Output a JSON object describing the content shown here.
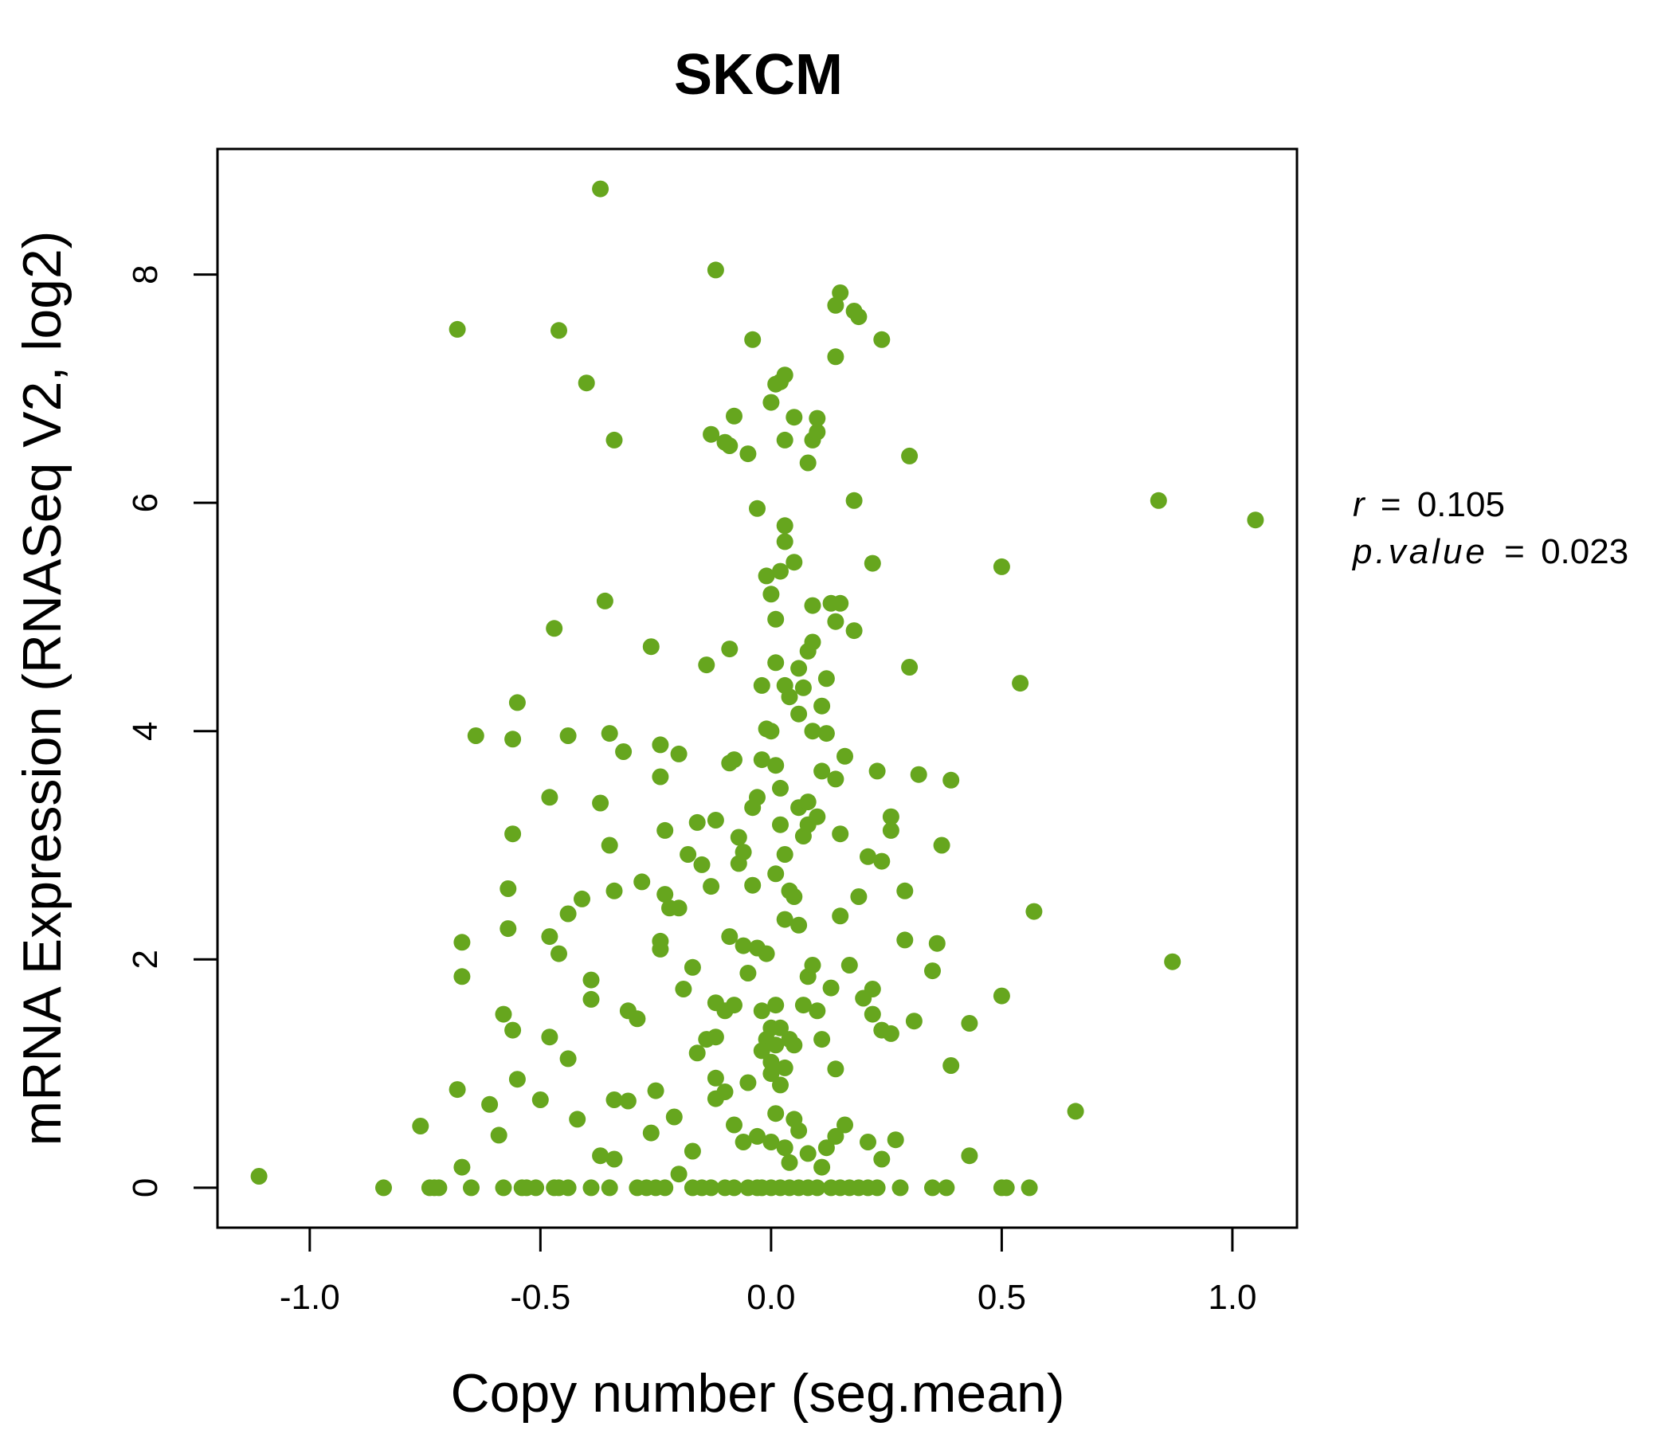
{
  "chart_data": {
    "type": "scatter",
    "title": "SKCM",
    "xlabel": "Copy number (seg.mean)",
    "ylabel": "mRNA Expression (RNASeq V2, log2)",
    "xlim": [
      -1.2,
      1.14
    ],
    "ylim": [
      -0.35,
      9.1
    ],
    "xticks": [
      -1.0,
      -0.5,
      0.0,
      0.5,
      1.0
    ],
    "xtick_labels": [
      "-1.0",
      "-0.5",
      "0.0",
      "0.5",
      "1.0"
    ],
    "yticks": [
      0,
      2,
      4,
      6,
      8
    ],
    "ytick_labels": [
      "0",
      "2",
      "4",
      "6",
      "8"
    ],
    "grid": false,
    "legend": "none",
    "colors": {
      "points": "#66a61e",
      "title": "#66a61e",
      "axis": "#000000"
    },
    "stats": {
      "r_label": "r",
      "r_value": "0.105",
      "p_label": "p.value",
      "p_value": "0.023",
      "equals": "="
    },
    "points": [
      [
        -1.11,
        0.1
      ],
      [
        -0.84,
        0
      ],
      [
        -0.74,
        0
      ],
      [
        -0.73,
        0
      ],
      [
        -0.72,
        0
      ],
      [
        -0.65,
        0
      ],
      [
        -0.58,
        0
      ],
      [
        -0.54,
        0
      ],
      [
        -0.53,
        0
      ],
      [
        -0.51,
        0
      ],
      [
        -0.47,
        0
      ],
      [
        -0.46,
        0
      ],
      [
        -0.44,
        0
      ],
      [
        -0.39,
        0
      ],
      [
        -0.35,
        0
      ],
      [
        -0.29,
        0
      ],
      [
        -0.27,
        0
      ],
      [
        -0.25,
        0
      ],
      [
        -0.23,
        0
      ],
      [
        -0.17,
        0
      ],
      [
        -0.15,
        0
      ],
      [
        -0.13,
        0
      ],
      [
        -0.1,
        0
      ],
      [
        -0.08,
        0
      ],
      [
        -0.05,
        0
      ],
      [
        -0.03,
        0
      ],
      [
        -0.02,
        0
      ],
      [
        0.0,
        0
      ],
      [
        0.02,
        0
      ],
      [
        0.04,
        0
      ],
      [
        0.06,
        0
      ],
      [
        0.08,
        0
      ],
      [
        0.1,
        0
      ],
      [
        0.13,
        0
      ],
      [
        0.15,
        0
      ],
      [
        0.17,
        0
      ],
      [
        0.19,
        0
      ],
      [
        0.21,
        0
      ],
      [
        0.23,
        0
      ],
      [
        0.28,
        0
      ],
      [
        0.35,
        0
      ],
      [
        0.38,
        0
      ],
      [
        0.5,
        0
      ],
      [
        0.51,
        0
      ],
      [
        0.56,
        0
      ],
      [
        -0.76,
        0.54
      ],
      [
        -0.68,
        0.86
      ],
      [
        -0.61,
        0.73
      ],
      [
        -0.59,
        0.46
      ],
      [
        -0.55,
        0.95
      ],
      [
        -0.5,
        0.77
      ],
      [
        -0.44,
        1.13
      ],
      [
        -0.42,
        0.6
      ],
      [
        -0.37,
        0.28
      ],
      [
        -0.34,
        0.25
      ],
      [
        -0.34,
        0.77
      ],
      [
        -0.31,
        0.76
      ],
      [
        -0.25,
        0.85
      ],
      [
        -0.26,
        0.48
      ],
      [
        -0.21,
        0.62
      ],
      [
        -0.2,
        0.12
      ],
      [
        -0.17,
        0.32
      ],
      [
        -0.12,
        0.96
      ],
      [
        -0.12,
        0.78
      ],
      [
        -0.1,
        0.84
      ],
      [
        -0.08,
        0.55
      ],
      [
        -0.06,
        0.4
      ],
      [
        -0.03,
        0.45
      ],
      [
        0.0,
        0.4
      ],
      [
        0.01,
        0.65
      ],
      [
        0.03,
        0.35
      ],
      [
        0.04,
        0.22
      ],
      [
        0.05,
        0.6
      ],
      [
        0.06,
        0.5
      ],
      [
        0.08,
        0.3
      ],
      [
        0.11,
        0.18
      ],
      [
        0.12,
        0.35
      ],
      [
        0.14,
        0.45
      ],
      [
        0.16,
        0.55
      ],
      [
        0.21,
        0.4
      ],
      [
        0.24,
        0.25
      ],
      [
        0.27,
        0.42
      ],
      [
        0.43,
        0.28
      ],
      [
        0.66,
        0.67
      ],
      [
        -0.67,
        0.18
      ],
      [
        -0.67,
        1.85
      ],
      [
        -0.67,
        2.15
      ],
      [
        -0.58,
        1.52
      ],
      [
        -0.56,
        1.38
      ],
      [
        -0.48,
        1.32
      ],
      [
        -0.46,
        2.05
      ],
      [
        -0.48,
        2.2
      ],
      [
        -0.44,
        2.4
      ],
      [
        -0.41,
        2.53
      ],
      [
        -0.39,
        1.82
      ],
      [
        -0.39,
        1.65
      ],
      [
        -0.34,
        2.6
      ],
      [
        -0.31,
        1.55
      ],
      [
        -0.29,
        1.48
      ],
      [
        -0.28,
        2.68
      ],
      [
        -0.24,
        2.16
      ],
      [
        -0.24,
        2.09
      ],
      [
        -0.23,
        2.57
      ],
      [
        -0.22,
        2.45
      ],
      [
        -0.2,
        2.45
      ],
      [
        -0.19,
        1.74
      ],
      [
        -0.17,
        1.93
      ],
      [
        -0.16,
        1.18
      ],
      [
        -0.14,
        1.3
      ],
      [
        -0.12,
        1.32
      ],
      [
        -0.12,
        1.62
      ],
      [
        -0.1,
        1.55
      ],
      [
        -0.08,
        1.6
      ],
      [
        -0.09,
        2.2
      ],
      [
        -0.06,
        2.12
      ],
      [
        -0.05,
        1.88
      ],
      [
        -0.03,
        2.1
      ],
      [
        -0.02,
        1.55
      ],
      [
        -0.01,
        1.3
      ],
      [
        0.0,
        1.0
      ],
      [
        0.01,
        1.25
      ],
      [
        0.02,
        1.4
      ],
      [
        0.03,
        1.05
      ],
      [
        0.04,
        1.3
      ],
      [
        0.05,
        1.25
      ],
      [
        0.07,
        1.6
      ],
      [
        0.08,
        1.85
      ],
      [
        0.09,
        1.95
      ],
      [
        0.1,
        1.55
      ],
      [
        0.11,
        1.3
      ],
      [
        0.13,
        1.75
      ],
      [
        0.14,
        1.04
      ],
      [
        0.15,
        2.38
      ],
      [
        0.17,
        1.95
      ],
      [
        0.2,
        1.66
      ],
      [
        0.22,
        1.74
      ],
      [
        0.22,
        1.52
      ],
      [
        0.24,
        1.38
      ],
      [
        0.26,
        1.35
      ],
      [
        0.31,
        1.46
      ],
      [
        0.35,
        1.9
      ],
      [
        0.39,
        1.07
      ],
      [
        0.43,
        1.44
      ],
      [
        0.5,
        1.68
      ],
      [
        0.87,
        1.98
      ],
      [
        0.0,
        1.1
      ],
      [
        -0.02,
        1.2
      ],
      [
        0.02,
        0.9
      ],
      [
        -0.05,
        0.92
      ],
      [
        0.0,
        1.4
      ],
      [
        0.01,
        1.6
      ],
      [
        -0.01,
        2.05
      ],
      [
        -0.64,
        3.96
      ],
      [
        -0.57,
        2.62
      ],
      [
        -0.57,
        2.27
      ],
      [
        -0.56,
        3.1
      ],
      [
        -0.56,
        3.93
      ],
      [
        -0.55,
        4.25
      ],
      [
        -0.48,
        3.42
      ],
      [
        -0.44,
        3.96
      ],
      [
        -0.37,
        3.37
      ],
      [
        -0.35,
        3.98
      ],
      [
        -0.35,
        3.0
      ],
      [
        -0.32,
        3.82
      ],
      [
        -0.26,
        4.74
      ],
      [
        -0.24,
        3.6
      ],
      [
        -0.24,
        3.88
      ],
      [
        -0.23,
        3.13
      ],
      [
        -0.2,
        3.8
      ],
      [
        -0.18,
        2.92
      ],
      [
        -0.16,
        3.2
      ],
      [
        -0.15,
        2.83
      ],
      [
        -0.14,
        4.58
      ],
      [
        -0.13,
        2.64
      ],
      [
        -0.12,
        3.22
      ],
      [
        -0.09,
        4.72
      ],
      [
        -0.09,
        3.72
      ],
      [
        -0.08,
        3.75
      ],
      [
        -0.07,
        3.07
      ],
      [
        -0.07,
        2.84
      ],
      [
        -0.06,
        2.94
      ],
      [
        -0.04,
        3.33
      ],
      [
        -0.03,
        3.42
      ],
      [
        -0.02,
        3.75
      ],
      [
        -0.02,
        4.4
      ],
      [
        -0.01,
        4.02
      ],
      [
        0.0,
        4.0
      ],
      [
        0.01,
        3.7
      ],
      [
        0.02,
        3.5
      ],
      [
        0.02,
        3.18
      ],
      [
        0.03,
        2.92
      ],
      [
        0.04,
        2.6
      ],
      [
        0.05,
        2.55
      ],
      [
        0.06,
        3.33
      ],
      [
        0.07,
        3.08
      ],
      [
        0.08,
        3.18
      ],
      [
        0.08,
        3.38
      ],
      [
        0.09,
        4.0
      ],
      [
        0.1,
        3.25
      ],
      [
        0.11,
        3.65
      ],
      [
        0.12,
        3.98
      ],
      [
        0.14,
        3.58
      ],
      [
        0.15,
        3.1
      ],
      [
        0.16,
        3.78
      ],
      [
        0.19,
        2.55
      ],
      [
        0.21,
        2.9
      ],
      [
        0.23,
        3.65
      ],
      [
        0.24,
        2.86
      ],
      [
        0.26,
        3.25
      ],
      [
        0.26,
        3.13
      ],
      [
        0.29,
        2.6
      ],
      [
        0.29,
        2.17
      ],
      [
        0.32,
        3.62
      ],
      [
        0.36,
        2.14
      ],
      [
        0.37,
        3.0
      ],
      [
        0.39,
        3.57
      ],
      [
        0.57,
        2.42
      ],
      [
        0.06,
        2.3
      ],
      [
        -0.04,
        2.65
      ],
      [
        0.01,
        2.75
      ],
      [
        0.03,
        2.35
      ],
      [
        -0.47,
        4.9
      ],
      [
        -0.36,
        5.14
      ],
      [
        -0.03,
        5.95
      ],
      [
        -0.01,
        5.36
      ],
      [
        0.0,
        5.2
      ],
      [
        0.01,
        4.98
      ],
      [
        0.02,
        5.4
      ],
      [
        0.03,
        5.66
      ],
      [
        0.03,
        5.8
      ],
      [
        0.05,
        5.48
      ],
      [
        0.06,
        4.55
      ],
      [
        0.07,
        4.38
      ],
      [
        0.08,
        4.7
      ],
      [
        0.09,
        4.78
      ],
      [
        0.09,
        5.1
      ],
      [
        0.11,
        4.22
      ],
      [
        0.12,
        4.46
      ],
      [
        0.13,
        5.12
      ],
      [
        0.14,
        4.96
      ],
      [
        0.15,
        5.12
      ],
      [
        0.18,
        4.88
      ],
      [
        0.22,
        5.47
      ],
      [
        0.3,
        4.56
      ],
      [
        0.5,
        5.44
      ],
      [
        0.54,
        4.42
      ],
      [
        0.84,
        6.02
      ],
      [
        1.05,
        5.85
      ],
      [
        0.01,
        4.6
      ],
      [
        0.03,
        4.4
      ],
      [
        0.04,
        4.3
      ],
      [
        0.06,
        4.15
      ],
      [
        -0.68,
        7.52
      ],
      [
        -0.46,
        7.51
      ],
      [
        -0.4,
        7.05
      ],
      [
        -0.37,
        8.75
      ],
      [
        -0.34,
        6.55
      ],
      [
        -0.13,
        6.6
      ],
      [
        -0.12,
        8.04
      ],
      [
        -0.1,
        6.53
      ],
      [
        -0.08,
        6.76
      ],
      [
        -0.09,
        6.5
      ],
      [
        -0.05,
        6.43
      ],
      [
        -0.04,
        7.43
      ],
      [
        0.0,
        6.88
      ],
      [
        0.01,
        7.04
      ],
      [
        0.02,
        7.06
      ],
      [
        0.03,
        7.12
      ],
      [
        0.03,
        6.55
      ],
      [
        0.05,
        6.75
      ],
      [
        0.08,
        6.35
      ],
      [
        0.09,
        6.55
      ],
      [
        0.1,
        6.74
      ],
      [
        0.1,
        6.62
      ],
      [
        0.14,
        7.28
      ],
      [
        0.14,
        7.73
      ],
      [
        0.15,
        7.84
      ],
      [
        0.18,
        7.68
      ],
      [
        0.19,
        7.63
      ],
      [
        0.18,
        6.02
      ],
      [
        0.24,
        7.43
      ],
      [
        0.3,
        6.41
      ]
    ]
  }
}
